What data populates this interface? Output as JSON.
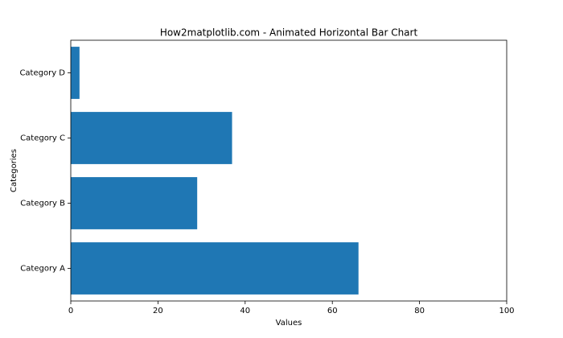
{
  "chart_data": {
    "type": "barh",
    "title": "How2matplotlib.com - Animated Horizontal Bar Chart",
    "x_label": "Values",
    "y_label": "Categories",
    "categories": [
      "Category A",
      "Category B",
      "Category C",
      "Category D"
    ],
    "values": [
      66,
      29,
      37,
      2
    ],
    "color": "#1f77b4",
    "xlim": [
      0,
      100
    ],
    "xticks": [
      0,
      20,
      40,
      60,
      80,
      100
    ],
    "grid": false
  }
}
